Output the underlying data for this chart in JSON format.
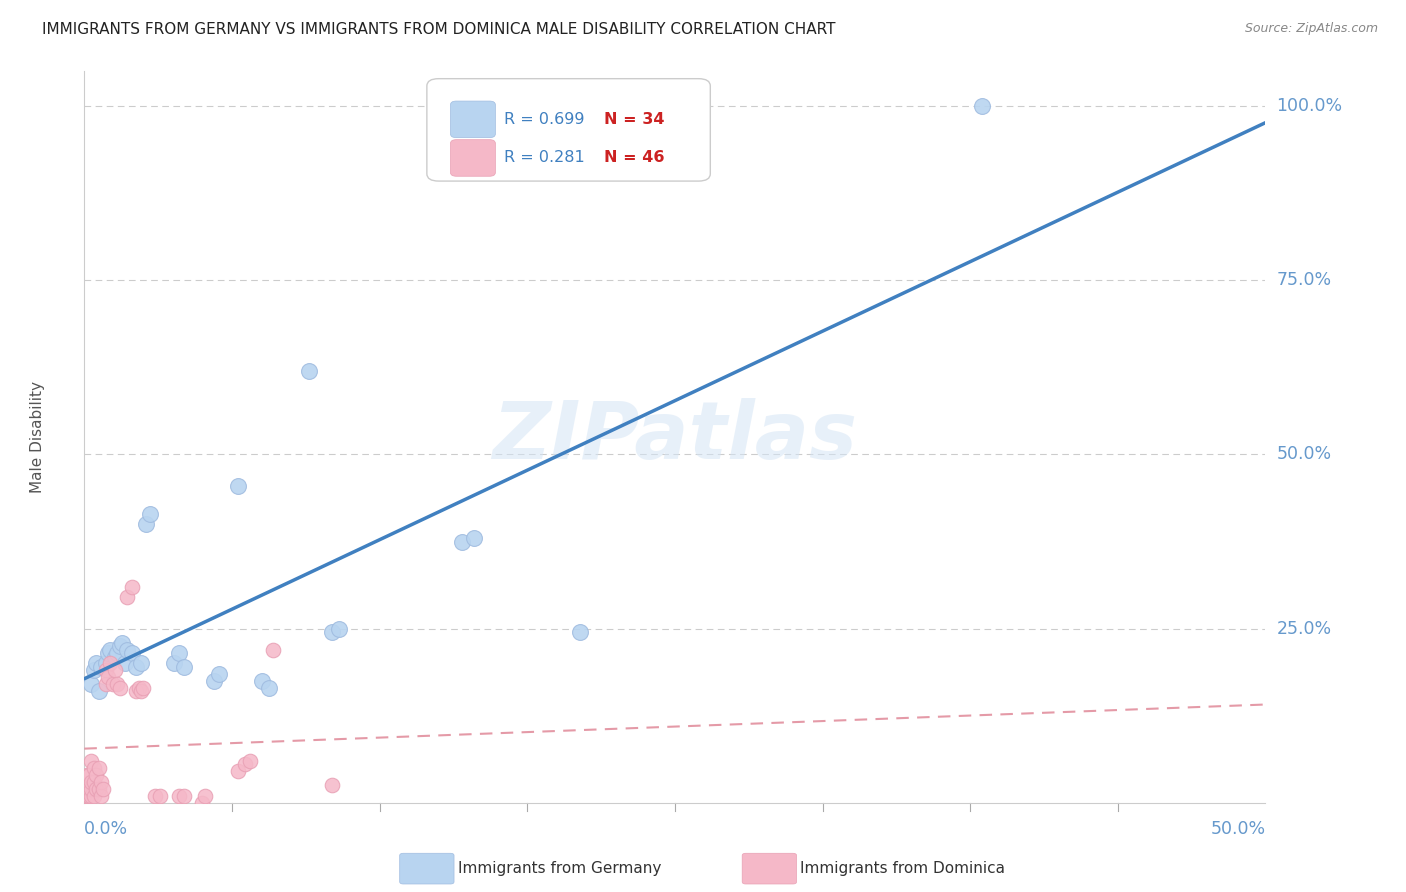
{
  "title": "IMMIGRANTS FROM GERMANY VS IMMIGRANTS FROM DOMINICA MALE DISABILITY CORRELATION CHART",
  "source": "Source: ZipAtlas.com",
  "ylabel": "Male Disability",
  "ytick_labels": [
    "100.0%",
    "75.0%",
    "50.0%",
    "25.0%"
  ],
  "ytick_values": [
    1.0,
    0.75,
    0.5,
    0.25
  ],
  "xtick_labels": [
    "0.0%",
    "50.0%"
  ],
  "xlim": [
    0.0,
    0.5
  ],
  "ylim": [
    0.0,
    1.05
  ],
  "legend_r_germany": "0.699",
  "legend_n_germany": "34",
  "legend_r_dominica": "0.281",
  "legend_n_dominica": "46",
  "color_germany_fill": "#b8d4f0",
  "color_germany_edge": "#a0bce0",
  "color_dominica_fill": "#f5b8c8",
  "color_dominica_edge": "#e8a0b4",
  "color_line_germany": "#4080c0",
  "color_line_dominica": "#e08898",
  "color_ytick": "#6699cc",
  "color_xtick": "#6699cc",
  "watermark": "ZIPatlas",
  "germany_points_x": [
    0.003,
    0.004,
    0.005,
    0.006,
    0.007,
    0.009,
    0.01,
    0.011,
    0.013,
    0.014,
    0.015,
    0.016,
    0.017,
    0.018,
    0.02,
    0.022,
    0.024,
    0.026,
    0.028,
    0.038,
    0.04,
    0.042,
    0.055,
    0.057,
    0.065,
    0.075,
    0.078,
    0.095,
    0.105,
    0.108,
    0.16,
    0.165,
    0.21,
    0.38
  ],
  "germany_points_y": [
    0.17,
    0.19,
    0.2,
    0.16,
    0.195,
    0.2,
    0.215,
    0.22,
    0.21,
    0.215,
    0.225,
    0.23,
    0.2,
    0.22,
    0.215,
    0.195,
    0.2,
    0.4,
    0.415,
    0.2,
    0.215,
    0.195,
    0.175,
    0.185,
    0.455,
    0.175,
    0.165,
    0.62,
    0.245,
    0.25,
    0.375,
    0.38,
    0.245,
    1.0
  ],
  "dominica_points_x": [
    0.0,
    0.001,
    0.001,
    0.001,
    0.002,
    0.002,
    0.002,
    0.003,
    0.003,
    0.003,
    0.003,
    0.004,
    0.004,
    0.004,
    0.005,
    0.005,
    0.006,
    0.006,
    0.007,
    0.007,
    0.008,
    0.009,
    0.009,
    0.01,
    0.011,
    0.012,
    0.013,
    0.014,
    0.015,
    0.018,
    0.02,
    0.022,
    0.023,
    0.024,
    0.025,
    0.03,
    0.032,
    0.04,
    0.042,
    0.05,
    0.051,
    0.065,
    0.068,
    0.07,
    0.08,
    0.105
  ],
  "dominica_points_y": [
    0.01,
    0.01,
    0.02,
    0.04,
    0.01,
    0.02,
    0.04,
    0.01,
    0.02,
    0.03,
    0.06,
    0.01,
    0.03,
    0.05,
    0.02,
    0.04,
    0.02,
    0.05,
    0.01,
    0.03,
    0.02,
    0.17,
    0.19,
    0.18,
    0.2,
    0.17,
    0.19,
    0.17,
    0.165,
    0.295,
    0.31,
    0.16,
    0.165,
    0.16,
    0.165,
    0.01,
    0.01,
    0.01,
    0.01,
    0.0,
    0.01,
    0.045,
    0.055,
    0.06,
    0.22,
    0.025
  ]
}
